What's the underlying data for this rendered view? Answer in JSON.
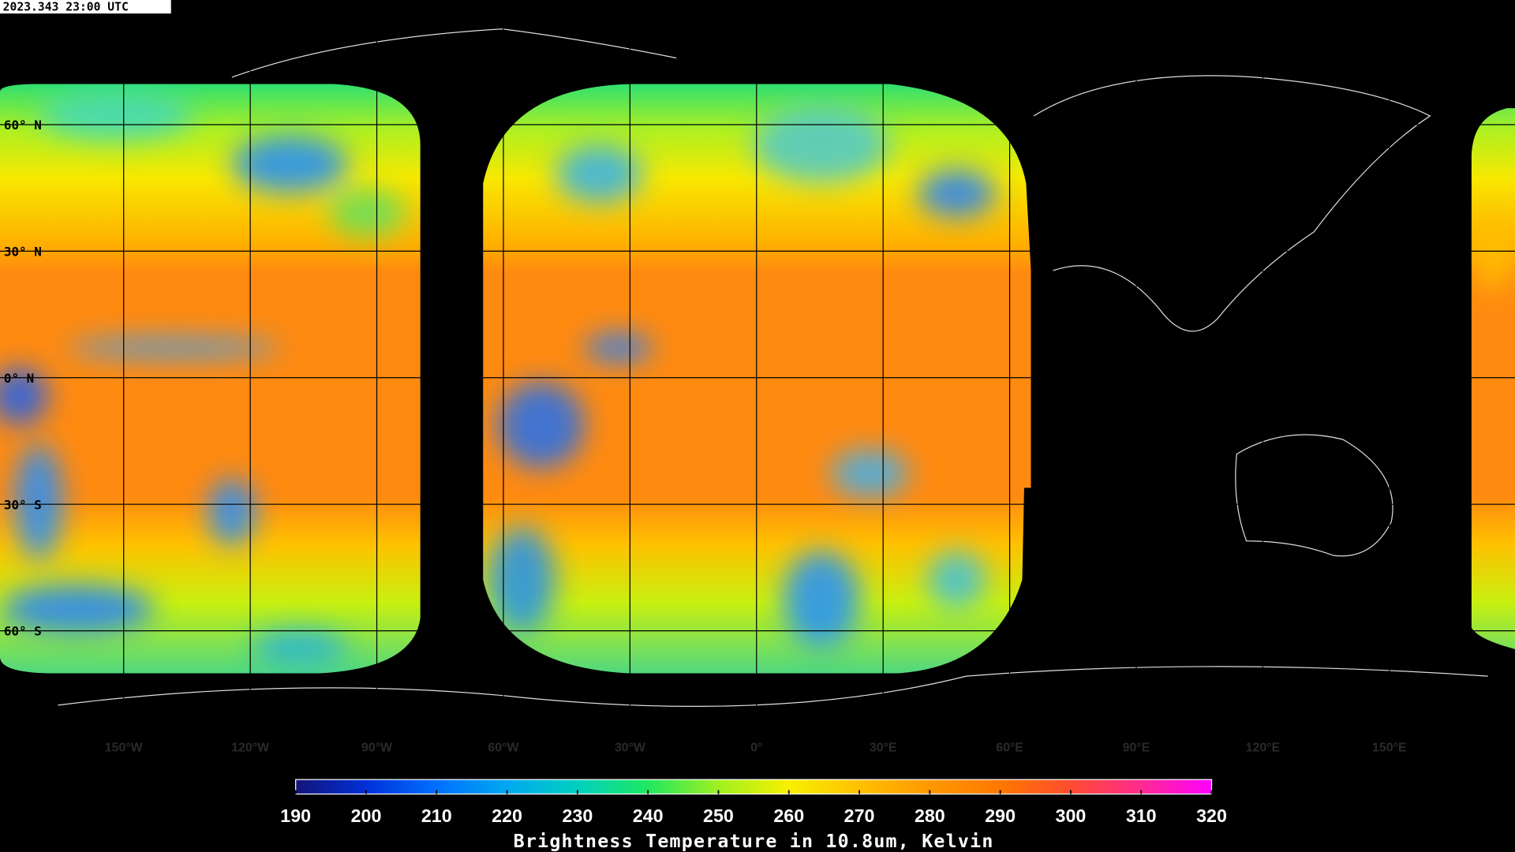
{
  "header": {
    "timestamp": "2023.343 23:00 UTC"
  },
  "grid": {
    "lat_lines": [
      {
        "value": 60,
        "label": "60° N"
      },
      {
        "value": 30,
        "label": "30° N"
      },
      {
        "value": 0,
        "label": "0° N"
      },
      {
        "value": -30,
        "label": "30° S"
      },
      {
        "value": -60,
        "label": "60° S"
      }
    ],
    "lon_lines": [
      {
        "value": -150,
        "label": "150°W"
      },
      {
        "value": -120,
        "label": "120°W"
      },
      {
        "value": -90,
        "label": "90°W"
      },
      {
        "value": -60,
        "label": "60°W"
      },
      {
        "value": -30,
        "label": "30°W"
      },
      {
        "value": 0,
        "label": "0°"
      },
      {
        "value": 30,
        "label": "30°E"
      },
      {
        "value": 60,
        "label": "60°E"
      },
      {
        "value": 90,
        "label": "90°E"
      },
      {
        "value": 120,
        "label": "120°E"
      },
      {
        "value": 150,
        "label": "150°E"
      }
    ]
  },
  "colorbar": {
    "label": "Brightness Temperature in 10.8um, Kelvin",
    "range": [
      190,
      320
    ],
    "ticks": [
      190,
      200,
      210,
      220,
      230,
      240,
      250,
      260,
      270,
      280,
      290,
      300,
      310,
      320
    ],
    "colors": [
      "#14147a",
      "#0030d8",
      "#0070ff",
      "#00a8f0",
      "#00d0c0",
      "#20e860",
      "#a0f020",
      "#f8f000",
      "#ffc000",
      "#ff9800",
      "#ff7800",
      "#ff4c30",
      "#ff2a90",
      "#ff00ff"
    ]
  }
}
